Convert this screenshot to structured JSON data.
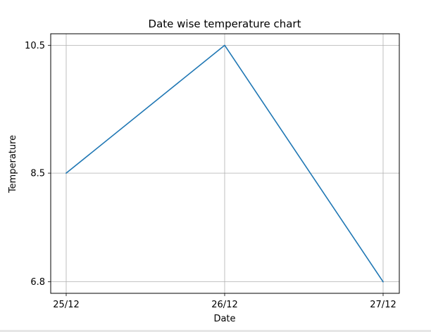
{
  "chart_data": {
    "type": "line",
    "title": "Date wise temperature chart",
    "xlabel": "Date",
    "ylabel": "Temperature",
    "categories": [
      "25/12",
      "26/12",
      "27/12"
    ],
    "series": [
      {
        "values": [
          8.5,
          10.5,
          6.8
        ]
      }
    ],
    "yticks": [
      6.8,
      8.5,
      10.5
    ],
    "ytick_labels": [
      "6.8",
      "8.5",
      "10.5"
    ],
    "ylim": [
      6.62,
      10.68
    ],
    "grid": true,
    "line_color": "#1f77b4",
    "grid_color": "#b0b0b0"
  }
}
